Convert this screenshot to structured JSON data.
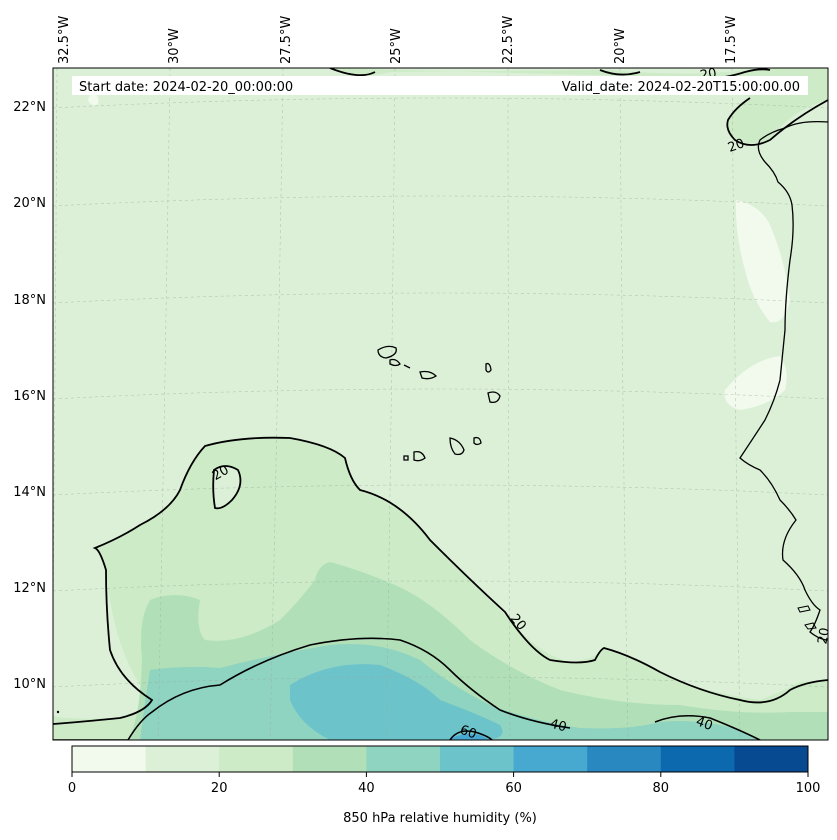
{
  "header": {
    "start_date": "Start date: 2024-02-20_00:00:00",
    "valid_date": "Valid_date: 2024-02-20T15:00:00.00"
  },
  "axes": {
    "lon_labels": [
      "32.5°W",
      "30°W",
      "27.5°W",
      "25°W",
      "22.5°W",
      "20°W",
      "17.5°W"
    ],
    "lat_labels": [
      "22°N",
      "20°N",
      "18°N",
      "16°N",
      "14°N",
      "12°N",
      "10°N"
    ]
  },
  "contour_labels": [
    "20",
    "20",
    "20",
    "20",
    "40",
    "40",
    "60",
    "20"
  ],
  "colorbar": {
    "label": "850 hPa relative humidity (%)",
    "ticks": [
      "0",
      "20",
      "40",
      "60",
      "80",
      "100"
    ],
    "colors": [
      "#f2faee",
      "#dcf0d8",
      "#ccebc6",
      "#b1e0b8",
      "#8fd3c1",
      "#6cc3ca",
      "#48a9d0",
      "#2988c0",
      "#0d69ad",
      "#084a91"
    ]
  },
  "colors": {
    "background_fill": "#dcf0d8",
    "coastline": "#000000",
    "contour": "#000000"
  }
}
